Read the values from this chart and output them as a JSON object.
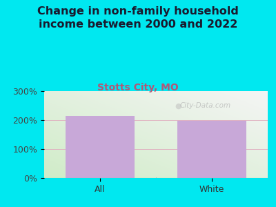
{
  "title": "Change in non-family household\nincome between 2000 and 2022",
  "subtitle": "Stotts City, MO",
  "categories": [
    "All",
    "White"
  ],
  "values": [
    215,
    198
  ],
  "bar_color": "#c8a8d8",
  "title_color": "#1a1a2e",
  "subtitle_color": "#b05878",
  "background_outer": "#00e8f0",
  "ylim": [
    0,
    300
  ],
  "yticks": [
    0,
    100,
    200,
    300
  ],
  "ytick_labels": [
    "0%",
    "100%",
    "200%",
    "300%"
  ],
  "title_fontsize": 11.5,
  "subtitle_fontsize": 10,
  "tick_fontsize": 9,
  "watermark": "City-Data.com",
  "grid_color": "#e0b0c0",
  "bg_color_left": "#d0ecc8",
  "bg_color_right": "#f0f0f0",
  "bg_color_top": "#e8f0e8"
}
